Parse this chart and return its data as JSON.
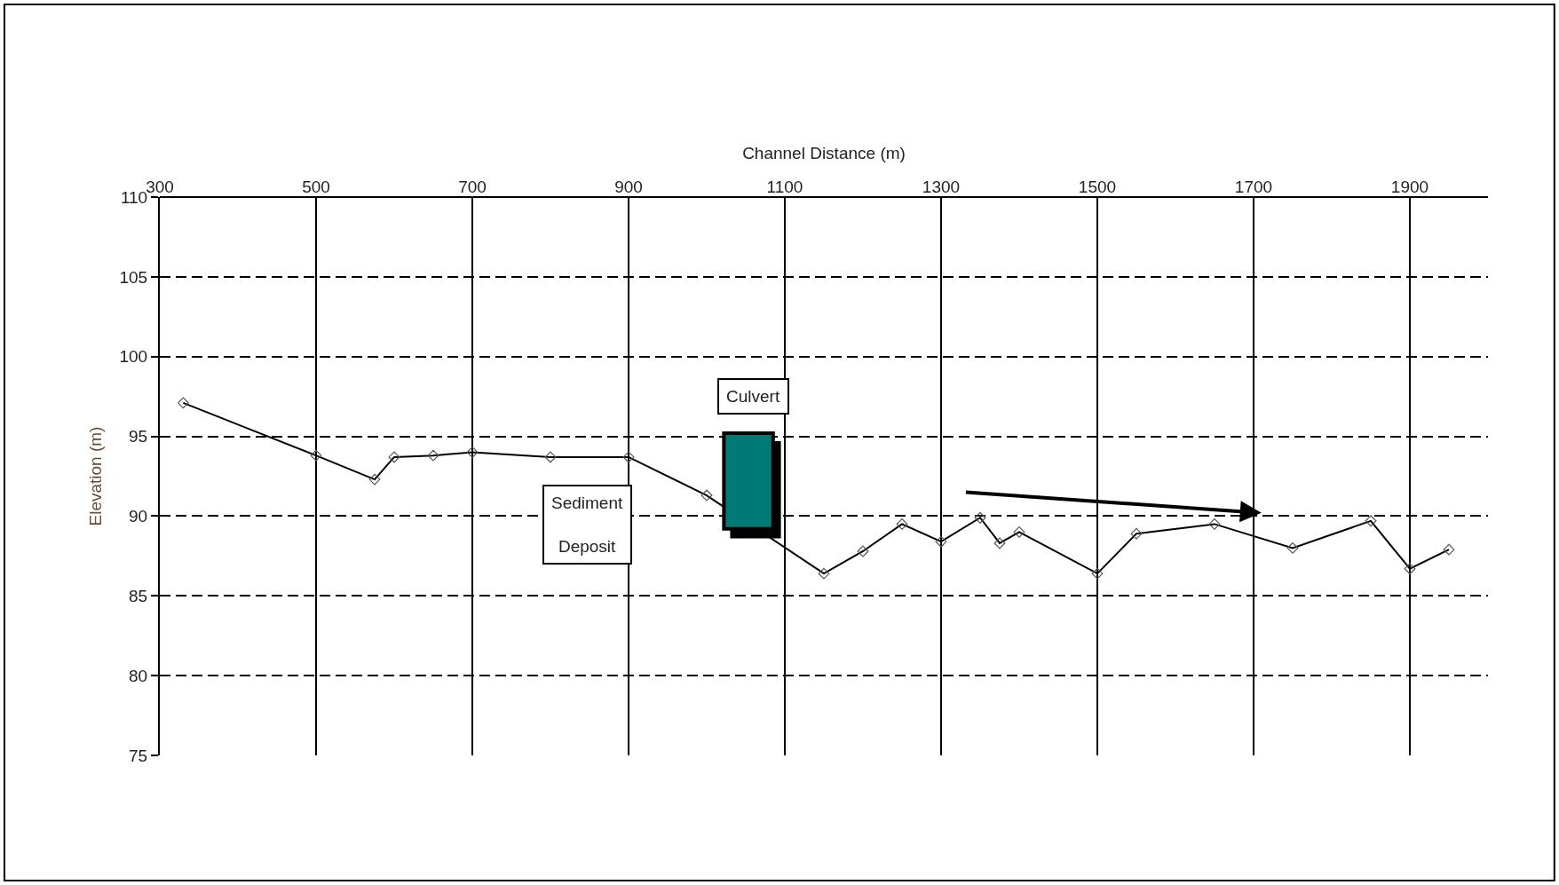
{
  "chart_data": {
    "type": "line",
    "xlabel": "Channel Distance (m)",
    "ylabel": "Elevation (m)",
    "x": [
      330,
      500,
      575,
      600,
      650,
      700,
      800,
      900,
      1000,
      1150,
      1200,
      1250,
      1300,
      1350,
      1375,
      1400,
      1500,
      1550,
      1650,
      1750,
      1850,
      1900,
      1950
    ],
    "series": [
      {
        "color": "#000000",
        "values": [
          97.1,
          93.8,
          92.3,
          93.7,
          93.8,
          94.0,
          93.7,
          93.7,
          91.3,
          86.4,
          87.8,
          89.5,
          88.4,
          89.9,
          88.3,
          89.0,
          86.4,
          88.9,
          89.5,
          88.0,
          89.7,
          86.7,
          87.9
        ]
      }
    ],
    "xlim": [
      300,
      2000
    ],
    "xticks": [
      300,
      500,
      700,
      900,
      1100,
      1300,
      1500,
      1700,
      1900
    ],
    "ylim": [
      75,
      110
    ],
    "yticks": [
      75,
      80,
      85,
      90,
      95,
      100,
      105,
      110
    ],
    "annotations": [
      "Culvert",
      "Sediment Deposit"
    ],
    "grid": true,
    "marker": "diamond",
    "line_style": "solid"
  }
}
